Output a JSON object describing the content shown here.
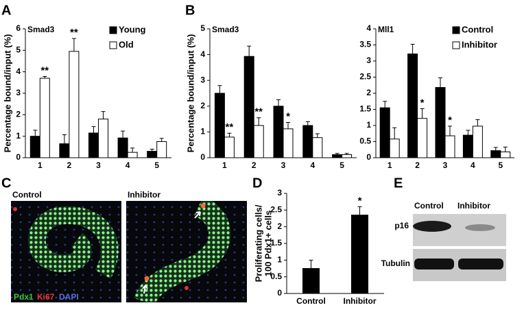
{
  "panel_labels": [
    "A",
    "B",
    "C",
    "D",
    "E"
  ],
  "chart_data": [
    {
      "type": "bar",
      "title": "Smad3",
      "ylabel": "Percentage bound/input (%)",
      "categories": [
        "1",
        "2",
        "3",
        "4",
        "5"
      ],
      "series": [
        {
          "name": "Young",
          "color": "#000000",
          "values": [
            1.0,
            0.65,
            1.15,
            0.92,
            0.3
          ],
          "errors": [
            0.28,
            0.42,
            0.3,
            0.32,
            0.1
          ]
        },
        {
          "name": "Old",
          "color": "#ffffff",
          "values": [
            3.7,
            4.95,
            1.8,
            0.25,
            0.75
          ],
          "errors": [
            0.08,
            0.6,
            0.35,
            0.2,
            0.15
          ],
          "significance": [
            "**",
            "**",
            null,
            null,
            null
          ]
        }
      ],
      "ylim": [
        0,
        6
      ],
      "yticks": [
        0,
        1,
        2,
        3,
        4,
        5,
        6
      ],
      "legend": "upper right"
    },
    {
      "type": "bar",
      "title": "Smad3",
      "ylabel": "Percentage bound/input (%)",
      "categories": [
        "1",
        "2",
        "3",
        "4",
        "5"
      ],
      "series": [
        {
          "color": "#000000",
          "values": [
            2.5,
            3.93,
            2.0,
            1.25,
            0.12
          ],
          "errors": [
            0.3,
            0.4,
            0.25,
            0.15,
            0.05
          ]
        },
        {
          "color": "#ffffff",
          "values": [
            0.8,
            1.25,
            1.12,
            0.78,
            0.12
          ],
          "errors": [
            0.15,
            0.3,
            0.25,
            0.15,
            0.05
          ],
          "significance": [
            "**",
            "**",
            "*",
            null,
            null
          ]
        }
      ],
      "ylim": [
        0,
        5
      ],
      "yticks": [
        0,
        1,
        2,
        3,
        4,
        5
      ]
    },
    {
      "type": "bar",
      "title": "Mll1",
      "categories": [
        "1",
        "2",
        "3",
        "4",
        "5"
      ],
      "series": [
        {
          "name": "Control",
          "color": "#000000",
          "values": [
            1.55,
            3.22,
            2.18,
            0.7,
            0.22
          ],
          "errors": [
            0.2,
            0.3,
            0.3,
            0.15,
            0.1
          ]
        },
        {
          "name": "Inhibitor",
          "color": "#ffffff",
          "values": [
            0.58,
            1.22,
            0.68,
            0.98,
            0.18
          ],
          "errors": [
            0.35,
            0.3,
            0.3,
            0.2,
            0.15
          ],
          "significance": [
            null,
            "*",
            "*",
            null,
            null
          ]
        }
      ],
      "ylim": [
        0,
        4
      ],
      "yticks": [
        0,
        0.5,
        1,
        1.5,
        2,
        2.5,
        3,
        3.5,
        4
      ],
      "legend": "upper right"
    },
    {
      "type": "bar",
      "ylabel": [
        "Proliferating cells/",
        "100 Pdx1+ cells"
      ],
      "categories": [
        "Control",
        "Inhibitor"
      ],
      "series": [
        {
          "color": "#000000",
          "values": [
            0.75,
            2.35
          ],
          "errors": [
            0.25,
            0.25
          ],
          "significance": [
            null,
            "*"
          ]
        }
      ],
      "ylim": [
        0,
        3
      ],
      "yticks": [
        0,
        0.5,
        1,
        1.5,
        2,
        2.5,
        3
      ]
    }
  ],
  "images": {
    "labels": [
      "Control",
      "Inhibitor"
    ],
    "stain": [
      "Pdx1",
      "Ki67",
      "DAPI"
    ]
  },
  "blot": {
    "columns": [
      "Control",
      "Inhibitor"
    ],
    "rows": [
      "p16",
      "Tubulin"
    ]
  }
}
